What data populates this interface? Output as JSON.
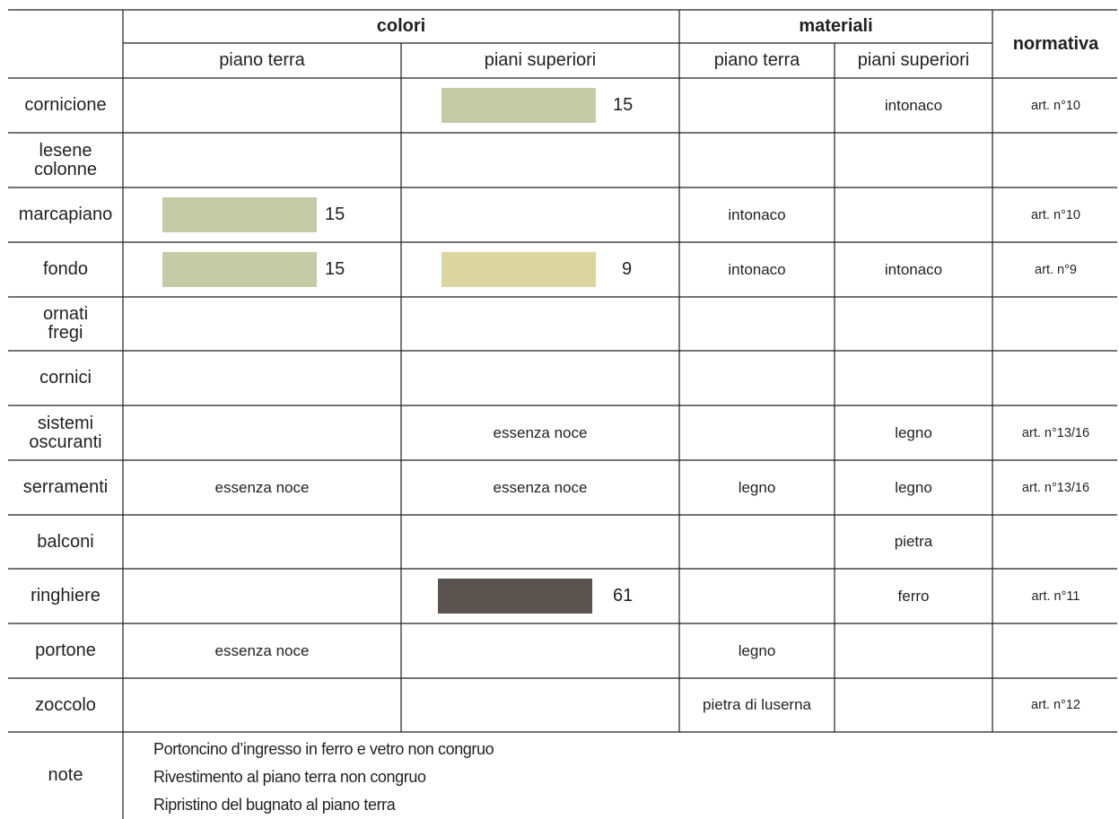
{
  "header": {
    "colori": "colori",
    "materiali": "materiali",
    "normativa": "normativa",
    "colori_piano_terra": "piano terra",
    "colori_piani_superiori": "piani superiori",
    "materiali_piano_terra": "piano terra",
    "materiali_piani_superiori": "piani superiori"
  },
  "rows": [
    {
      "label": "cornicione",
      "colori_pt": "",
      "colori_ps": "",
      "materiali_pt": "",
      "materiali_ps": "intonaco",
      "normativa": "art. n°10",
      "swatch_ps": {
        "color": "#c5cba5",
        "code": "15"
      }
    },
    {
      "label": "lesene\ncolonne",
      "colori_pt": "",
      "colori_ps": "",
      "materiali_pt": "",
      "materiali_ps": "",
      "normativa": ""
    },
    {
      "label": "marcapiano",
      "colori_pt": "",
      "colori_ps": "",
      "materiali_pt": "intonaco",
      "materiali_ps": "",
      "normativa": "art. n°10",
      "swatch_pt": {
        "color": "#c5cba5",
        "code": "15"
      }
    },
    {
      "label": "fondo",
      "colori_pt": "",
      "colori_ps": "",
      "materiali_pt": "intonaco",
      "materiali_ps": "intonaco",
      "normativa": "art. n°9",
      "swatch_pt": {
        "color": "#c5cba5",
        "code": "15"
      },
      "swatch_ps": {
        "color": "#dbd69f",
        "code": "9"
      }
    },
    {
      "label": "ornati\nfregi",
      "colori_pt": "",
      "colori_ps": "",
      "materiali_pt": "",
      "materiali_ps": "",
      "normativa": ""
    },
    {
      "label": "cornici",
      "colori_pt": "",
      "colori_ps": "",
      "materiali_pt": "",
      "materiali_ps": "",
      "normativa": ""
    },
    {
      "label": "sistemi\noscuranti",
      "colori_pt": "",
      "colori_ps": "essenza noce",
      "materiali_pt": "",
      "materiali_ps": "legno",
      "normativa": "art. n°13/16"
    },
    {
      "label": "serramenti",
      "colori_pt": "essenza noce",
      "colori_ps": "essenza noce",
      "materiali_pt": "legno",
      "materiali_ps": "legno",
      "normativa": "art. n°13/16"
    },
    {
      "label": "balconi",
      "colori_pt": "",
      "colori_ps": "",
      "materiali_pt": "",
      "materiali_ps": "pietra",
      "normativa": ""
    },
    {
      "label": "ringhiere",
      "colori_pt": "",
      "colori_ps": "",
      "materiali_pt": "",
      "materiali_ps": "ferro",
      "normativa": "art. n°11",
      "swatch_ps": {
        "color": "#5a5450",
        "code": "61"
      }
    },
    {
      "label": "portone",
      "colori_pt": "essenza noce",
      "colori_ps": "",
      "materiali_pt": "legno",
      "materiali_ps": "",
      "normativa": ""
    },
    {
      "label": "zoccolo",
      "colori_pt": "",
      "colori_ps": "",
      "materiali_pt": "pietra di luserna",
      "materiali_ps": "",
      "normativa": "art. n°12"
    }
  ],
  "note": {
    "label": "note",
    "lines": [
      "Portoncino d’ingresso in ferro e vetro non congruo",
      "Rivestimento al piano terra non congruo",
      "Ripristino del bugnato al piano terra"
    ]
  }
}
